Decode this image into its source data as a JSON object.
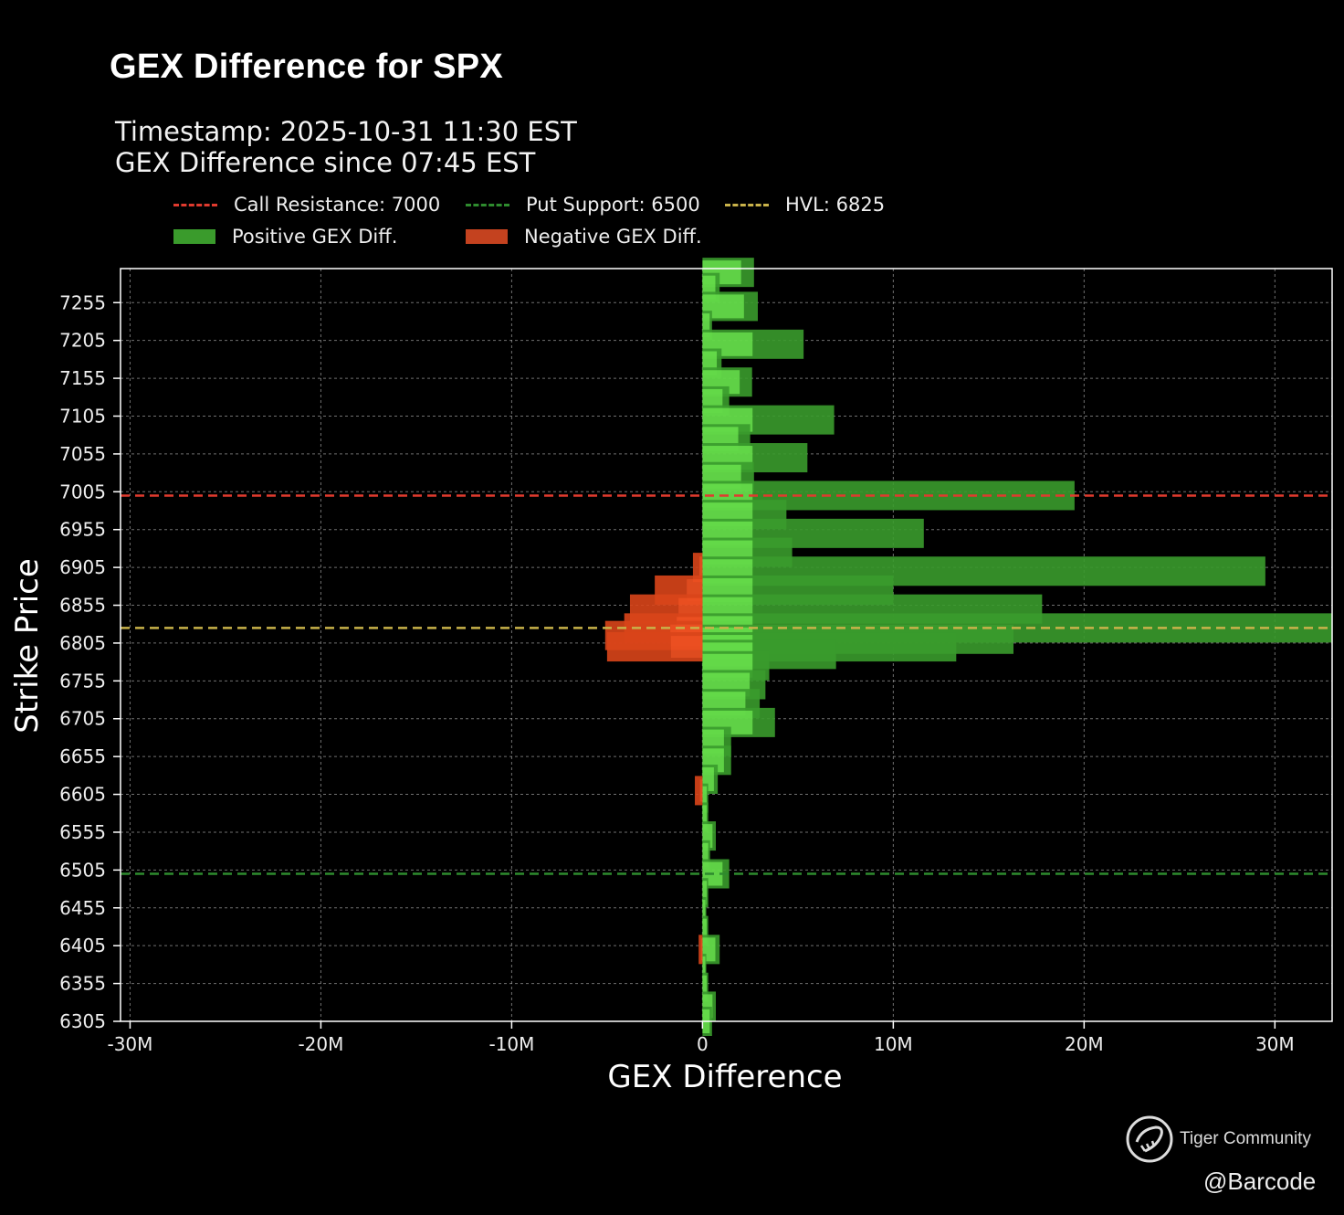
{
  "chart_data": {
    "type": "bar",
    "orientation": "horizontal",
    "title": "GEX Difference for SPX",
    "subtitle_lines": [
      "Timestamp: 2025-10-31 11:30 EST",
      "GEX Difference since 07:45 EST"
    ],
    "xlabel": "GEX Difference",
    "ylabel": "Strike Price",
    "xlim": [
      -30500000,
      33000000
    ],
    "ylim": [
      6305,
      7300
    ],
    "x_ticks": [
      -30000000,
      -20000000,
      -10000000,
      0,
      10000000,
      20000000,
      30000000
    ],
    "x_tick_labels": [
      "-30M",
      "-20M",
      "-10M",
      "0",
      "10M",
      "20M",
      "30M"
    ],
    "y_ticks": [
      6305,
      6355,
      6405,
      6455,
      6505,
      6555,
      6605,
      6655,
      6705,
      6755,
      6805,
      6855,
      6905,
      6955,
      7005,
      7055,
      7105,
      7155,
      7205,
      7255
    ],
    "grid": true,
    "legend_position": "top-left",
    "reference_lines": [
      {
        "label": "Call Resistance: 7000",
        "value": 7000,
        "color": "#e03a2e"
      },
      {
        "label": "Put Support: 6500",
        "value": 6500,
        "color": "#2e8b2e"
      },
      {
        "label": "HVL: 6825",
        "value": 6825,
        "color": "#c9b24a"
      }
    ],
    "series": [
      {
        "name": "Positive GEX Diff.",
        "color": "#3a9b2c",
        "strikes": [
          7295,
          7275,
          7250,
          7225,
          7200,
          7175,
          7150,
          7125,
          7100,
          7075,
          7050,
          7025,
          7000,
          6975,
          6950,
          6925,
          6900,
          6875,
          6850,
          6825,
          6810,
          6800,
          6790,
          6775,
          6750,
          6725,
          6700,
          6675,
          6650,
          6625,
          6600,
          6575,
          6550,
          6525,
          6500,
          6475,
          6450,
          6425,
          6400,
          6375,
          6350,
          6325,
          6305
        ],
        "values": [
          2700000,
          900000,
          2900000,
          500000,
          5300000,
          1000000,
          2600000,
          1400000,
          6900000,
          2500000,
          5500000,
          2700000,
          19500000,
          4400000,
          11600000,
          4700000,
          29500000,
          10000000,
          17800000,
          33000000,
          16300000,
          13300000,
          7000000,
          3500000,
          3300000,
          3000000,
          3800000,
          1500000,
          1500000,
          800000,
          300000,
          300000,
          700000,
          400000,
          1400000,
          300000,
          200000,
          300000,
          900000,
          200000,
          300000,
          700000,
          500000
        ]
      },
      {
        "name": "Negative GEX Diff.",
        "color": "#d9451a",
        "strikes": [
          6905,
          6875,
          6850,
          6825,
          6815,
          6800,
          6610,
          6400
        ],
        "values": [
          -500000,
          -2500000,
          -3800000,
          -4100000,
          -5100000,
          -5000000,
          -400000,
          -200000
        ]
      }
    ]
  },
  "watermark": {
    "brand": "Tiger Community",
    "handle": "@Barcode"
  },
  "colors": {
    "background": "#000000",
    "positive": "#3a9b2c",
    "negative": "#d9451a",
    "bright_green": "#7dff5a"
  }
}
